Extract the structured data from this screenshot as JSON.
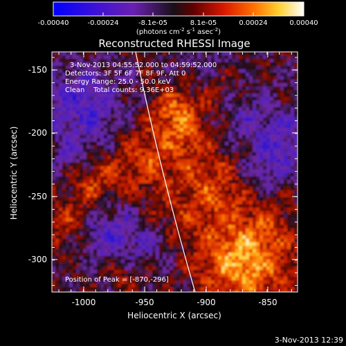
{
  "colorbar": {
    "tick_labels": [
      "-0.00040",
      "-0.00024",
      "-8.1e-05",
      "8.1e-05",
      "0.00024",
      "0.00040"
    ],
    "units": "(photons cm",
    "units_exp1": "-2",
    "units_mid": " s",
    "units_exp2": "-1",
    "units_end": " asec",
    "units_exp3": "-2",
    "units_close": ")"
  },
  "plot": {
    "title": "Reconstructed RHESSI Image",
    "xlabel": "Heliocentric X (arcsec)",
    "ylabel": "Heliocentric Y (arcsec)",
    "x_ticks": [
      "-1000",
      "-950",
      "-900",
      "-850"
    ],
    "y_ticks": [
      "-150",
      "-200",
      "-250",
      "-300"
    ]
  },
  "annotation": {
    "time_range": "3-Nov-2013 04:55:52.000 to 04:59:52.000",
    "detectors": "Detectors: 3F 5F 6F 7F 8F 9F, Att 0",
    "energy": "Energy Range: 25.0 - 50.0 keV",
    "clean": "Clean    Total counts: 9.36E+03",
    "peak": "Position of Peak = [-870,-296]"
  },
  "timestamp": "3-Nov-2013 12:39"
}
